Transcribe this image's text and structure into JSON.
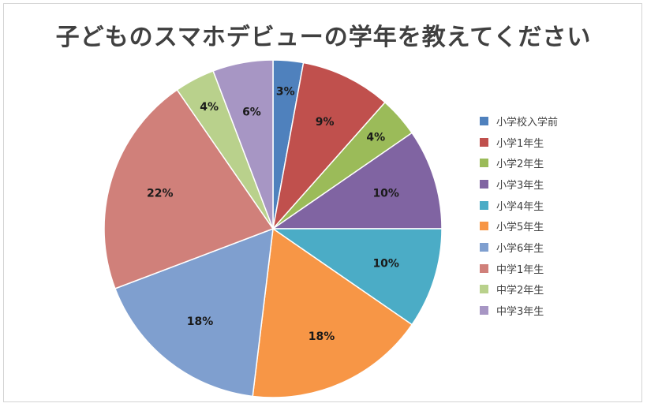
{
  "chart_data": {
    "type": "pie",
    "title": "子どものスマホデビューの学年を教えてください",
    "legend_position": "right",
    "start_angle_deg": 0,
    "direction": "clockwise",
    "slices": [
      {
        "name": "小学校入学前",
        "value": 3,
        "label": "3%",
        "color": "#4F81BD"
      },
      {
        "name": "小学1年生",
        "value": 9,
        "label": "9%",
        "color": "#C0504D"
      },
      {
        "name": "小学2年生",
        "value": 4,
        "label": "4%",
        "color": "#9BBB59"
      },
      {
        "name": "小学3年生",
        "value": 10,
        "label": "10%",
        "color": "#8064A2"
      },
      {
        "name": "小学4年生",
        "value": 10,
        "label": "10%",
        "color": "#4BACC6"
      },
      {
        "name": "小学5年生",
        "value": 18,
        "label": "18%",
        "color": "#F79646"
      },
      {
        "name": "小学6年生",
        "value": 18,
        "label": "18%",
        "color": "#7F9FCF"
      },
      {
        "name": "中学1年生",
        "value": 22,
        "label": "22%",
        "color": "#D0807A"
      },
      {
        "name": "中学2年生",
        "value": 4,
        "label": "4%",
        "color": "#B9D18C"
      },
      {
        "name": "中学3年生",
        "value": 6,
        "label": "6%",
        "color": "#A796C4"
      }
    ]
  }
}
